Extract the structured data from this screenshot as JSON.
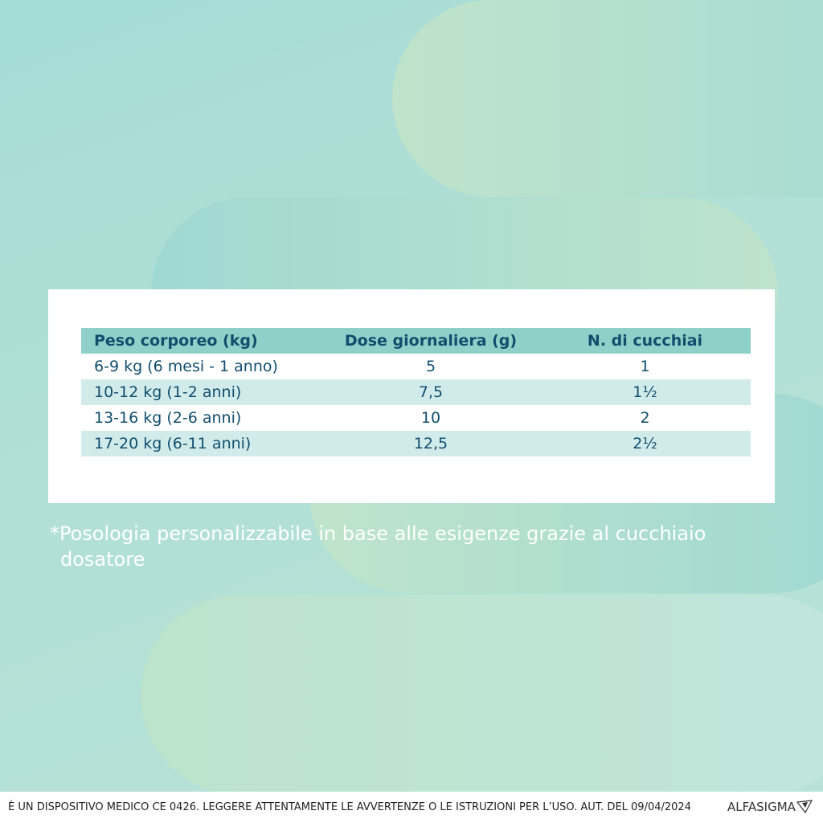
{
  "table": {
    "headers": [
      "Peso corporeo (kg)",
      "Dose giornaliera (g)",
      "N. di cucchiai"
    ],
    "rows": [
      [
        "6-9 kg (6 mesi - 1 anno)",
        "5",
        "1"
      ],
      [
        "10-12 kg (1-2 anni)",
        "7,5",
        "1½"
      ],
      [
        "13-16 kg (2-6 anni)",
        "10",
        "2"
      ],
      [
        "17-20 kg (6-11 anni)",
        "12,5",
        "2½"
      ]
    ]
  },
  "note": "*Posologia personalizzabile in base alle esigenze grazie al cucchiaio dosatore",
  "footer": {
    "disclaimer": "È UN DISPOSITIVO MEDICO CE 0426. LEGGERE ATTENTAMENTE LE AVVERTENZE O LE ISTRUZIONI PER L’USO. AUT. DEL 09/04/2024",
    "brand": "ALFASIGMA"
  },
  "colors": {
    "text": "#114e6d",
    "header": "#8fd1c9",
    "stripe": "#d1ebea"
  }
}
